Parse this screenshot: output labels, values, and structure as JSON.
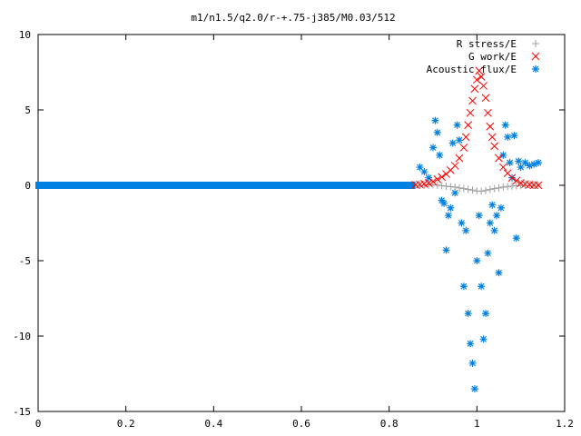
{
  "chart_data": {
    "type": "scatter",
    "title": "m1/n1.5/q2.0/r-+.75-j385/M0.03/512",
    "xlabel": "",
    "ylabel": "",
    "xlim": [
      0,
      1.2
    ],
    "ylim": [
      -15,
      10
    ],
    "x_ticks": [
      "0",
      "0.2",
      "0.4",
      "0.6",
      "0.8",
      "1",
      "1.2"
    ],
    "y_ticks": [
      "10",
      "5",
      "0",
      "-5",
      "-10",
      "-15"
    ],
    "grid": false,
    "legend_position": "top-right",
    "series": [
      {
        "name": "R stress/E",
        "marker": "plus",
        "color": "#a0a0a0",
        "points": [
          [
            0.87,
            0
          ],
          [
            0.88,
            0.01
          ],
          [
            0.89,
            0.02
          ],
          [
            0.9,
            0.03
          ],
          [
            0.91,
            0.01
          ],
          [
            0.92,
            -0.03
          ],
          [
            0.93,
            -0.06
          ],
          [
            0.94,
            -0.09
          ],
          [
            0.95,
            -0.12
          ],
          [
            0.96,
            -0.17
          ],
          [
            0.97,
            -0.22
          ],
          [
            0.98,
            -0.27
          ],
          [
            0.99,
            -0.32
          ],
          [
            1.0,
            -0.38
          ],
          [
            1.01,
            -0.4
          ],
          [
            1.02,
            -0.35
          ],
          [
            1.03,
            -0.28
          ],
          [
            1.04,
            -0.22
          ],
          [
            1.05,
            -0.17
          ],
          [
            1.06,
            -0.12
          ],
          [
            1.07,
            -0.08
          ],
          [
            1.08,
            -0.05
          ],
          [
            1.09,
            -0.03
          ],
          [
            1.1,
            -0.02
          ],
          [
            1.11,
            -0.01
          ],
          [
            1.12,
            0
          ],
          [
            1.13,
            0
          ],
          [
            1.14,
            0
          ]
        ]
      },
      {
        "name": "G work/E",
        "marker": "cross",
        "color": "#ff0000",
        "points": [
          [
            0.86,
            0.03
          ],
          [
            0.87,
            0.05
          ],
          [
            0.88,
            0.1
          ],
          [
            0.89,
            0.15
          ],
          [
            0.9,
            0.25
          ],
          [
            0.91,
            0.4
          ],
          [
            0.92,
            0.55
          ],
          [
            0.93,
            0.75
          ],
          [
            0.94,
            1.0
          ],
          [
            0.95,
            1.3
          ],
          [
            0.96,
            1.8
          ],
          [
            0.97,
            2.5
          ],
          [
            0.975,
            3.2
          ],
          [
            0.98,
            4.0
          ],
          [
            0.985,
            4.8
          ],
          [
            0.99,
            5.6
          ],
          [
            0.995,
            6.4
          ],
          [
            1.0,
            7.0
          ],
          [
            1.005,
            7.6
          ],
          [
            1.01,
            7.2
          ],
          [
            1.015,
            6.6
          ],
          [
            1.02,
            5.8
          ],
          [
            1.025,
            4.8
          ],
          [
            1.03,
            3.9
          ],
          [
            1.035,
            3.2
          ],
          [
            1.04,
            2.6
          ],
          [
            1.05,
            1.8
          ],
          [
            1.06,
            1.2
          ],
          [
            1.07,
            0.8
          ],
          [
            1.08,
            0.5
          ],
          [
            1.09,
            0.3
          ],
          [
            1.1,
            0.15
          ],
          [
            1.11,
            0.08
          ],
          [
            1.12,
            0.04
          ],
          [
            1.13,
            0.02
          ],
          [
            1.14,
            0.01
          ]
        ]
      },
      {
        "name": "Acoustic flux/E",
        "marker": "star",
        "color": "#0080e0",
        "points": [
          [
            0.87,
            1.2
          ],
          [
            0.88,
            0.9
          ],
          [
            0.89,
            0.5
          ],
          [
            0.9,
            2.5
          ],
          [
            0.905,
            4.3
          ],
          [
            0.91,
            3.5
          ],
          [
            0.915,
            2.0
          ],
          [
            0.92,
            -1.0
          ],
          [
            0.925,
            -1.2
          ],
          [
            0.93,
            -4.3
          ],
          [
            0.935,
            -2.0
          ],
          [
            0.94,
            -1.5
          ],
          [
            0.945,
            2.8
          ],
          [
            0.95,
            -0.5
          ],
          [
            0.955,
            4.0
          ],
          [
            0.96,
            3.0
          ],
          [
            0.965,
            -2.5
          ],
          [
            0.97,
            -6.7
          ],
          [
            0.975,
            -3.0
          ],
          [
            0.98,
            -8.5
          ],
          [
            0.985,
            -10.5
          ],
          [
            0.99,
            -11.8
          ],
          [
            0.995,
            -13.5
          ],
          [
            1.0,
            -5.0
          ],
          [
            1.005,
            -2.0
          ],
          [
            1.01,
            -6.7
          ],
          [
            1.015,
            -10.2
          ],
          [
            1.02,
            -8.5
          ],
          [
            1.025,
            -4.5
          ],
          [
            1.03,
            -2.5
          ],
          [
            1.035,
            -1.3
          ],
          [
            1.04,
            -3.0
          ],
          [
            1.045,
            -2.0
          ],
          [
            1.05,
            -5.8
          ],
          [
            1.055,
            -1.5
          ],
          [
            1.06,
            2.0
          ],
          [
            1.065,
            4.0
          ],
          [
            1.07,
            3.2
          ],
          [
            1.075,
            1.5
          ],
          [
            1.08,
            0.5
          ],
          [
            1.085,
            3.3
          ],
          [
            1.09,
            -3.5
          ],
          [
            1.095,
            1.6
          ],
          [
            1.1,
            1.2
          ],
          [
            1.11,
            1.5
          ],
          [
            1.12,
            1.3
          ],
          [
            1.13,
            1.4
          ],
          [
            1.14,
            1.5
          ]
        ]
      }
    ]
  }
}
